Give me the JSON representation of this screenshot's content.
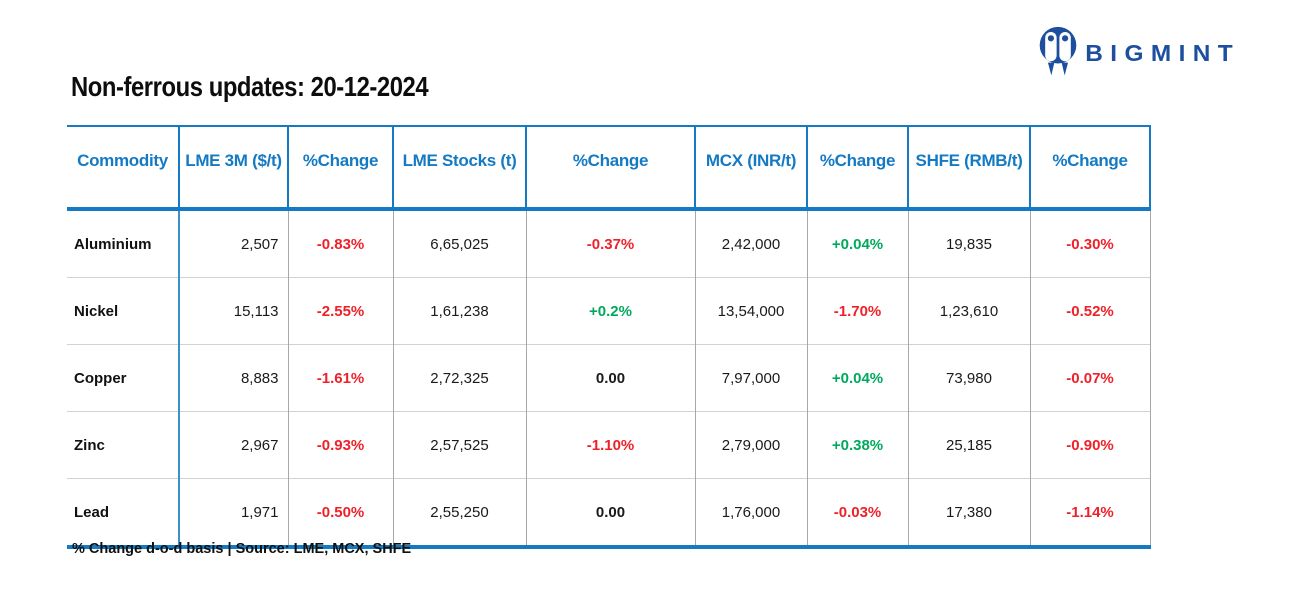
{
  "page": {
    "title": "Non-ferrous updates: 20-12-2024"
  },
  "brand": {
    "name": "BIGMINT"
  },
  "colors": {
    "header_blue": "#147ac4",
    "negative_red": "#ee2129",
    "positive_green": "#01a95c",
    "brand_navy": "#1d4f9e",
    "grid_gray": "#a8a8a8"
  },
  "table": {
    "columns": [
      "Commodity",
      "LME 3M ($/t)",
      "%Change",
      "LME Stocks (t)",
      "%Change",
      "MCX (INR/t)",
      "%Change",
      "SHFE (RMB/t)",
      "%Change"
    ],
    "rows": [
      [
        "Aluminium",
        "2,507",
        "-0.83%",
        "6,65,025",
        "-0.37%",
        "2,42,000",
        "+0.04%",
        "19,835",
        "-0.30%"
      ],
      [
        "Nickel",
        "15,113",
        "-2.55%",
        "1,61,238",
        "+0.2%",
        "13,54,000",
        "-1.70%",
        "1,23,610",
        "-0.52%"
      ],
      [
        "Copper",
        "8,883",
        "-1.61%",
        "2,72,325",
        "0.00",
        "7,97,000",
        "+0.04%",
        "73,980",
        "-0.07%"
      ],
      [
        "Zinc",
        "2,967",
        "-0.93%",
        "2,57,525",
        "-1.10%",
        "2,79,000",
        "+0.38%",
        "25,185",
        "-0.90%"
      ],
      [
        "Lead",
        "1,971",
        "-0.50%",
        "2,55,250",
        "0.00",
        "1,76,000",
        "-0.03%",
        "17,380",
        "-1.14%"
      ]
    ]
  },
  "footer": {
    "note": "% Change d-o-d basis | Source: LME, MCX, SHFE"
  },
  "chart_data": {
    "type": "table",
    "title": "Non-ferrous updates: 20-12-2024",
    "columns": [
      "Commodity",
      "LME 3M ($/t)",
      "%Change",
      "LME Stocks (t)",
      "%Change",
      "MCX (INR/t)",
      "%Change",
      "SHFE (RMB/t)",
      "%Change"
    ],
    "rows": [
      [
        "Aluminium",
        "2,507",
        "-0.83%",
        "6,65,025",
        "-0.37%",
        "2,42,000",
        "+0.04%",
        "19,835",
        "-0.30%"
      ],
      [
        "Nickel",
        "15,113",
        "-2.55%",
        "1,61,238",
        "+0.2%",
        "13,54,000",
        "-1.70%",
        "1,23,610",
        "-0.52%"
      ],
      [
        "Copper",
        "8,883",
        "-1.61%",
        "2,72,325",
        "0.00",
        "7,97,000",
        "+0.04%",
        "73,980",
        "-0.07%"
      ],
      [
        "Zinc",
        "2,967",
        "-0.93%",
        "2,57,525",
        "-1.10%",
        "2,79,000",
        "+0.38%",
        "25,185",
        "-0.90%"
      ],
      [
        "Lead",
        "1,971",
        "-0.50%",
        "2,55,250",
        "0.00",
        "1,76,000",
        "-0.03%",
        "17,380",
        "-1.14%"
      ]
    ],
    "footnote": "% Change d-o-d basis | Source: LME, MCX, SHFE",
    "legend": "none",
    "notes": "negative %change shown red, positive green, 0.00 black"
  }
}
